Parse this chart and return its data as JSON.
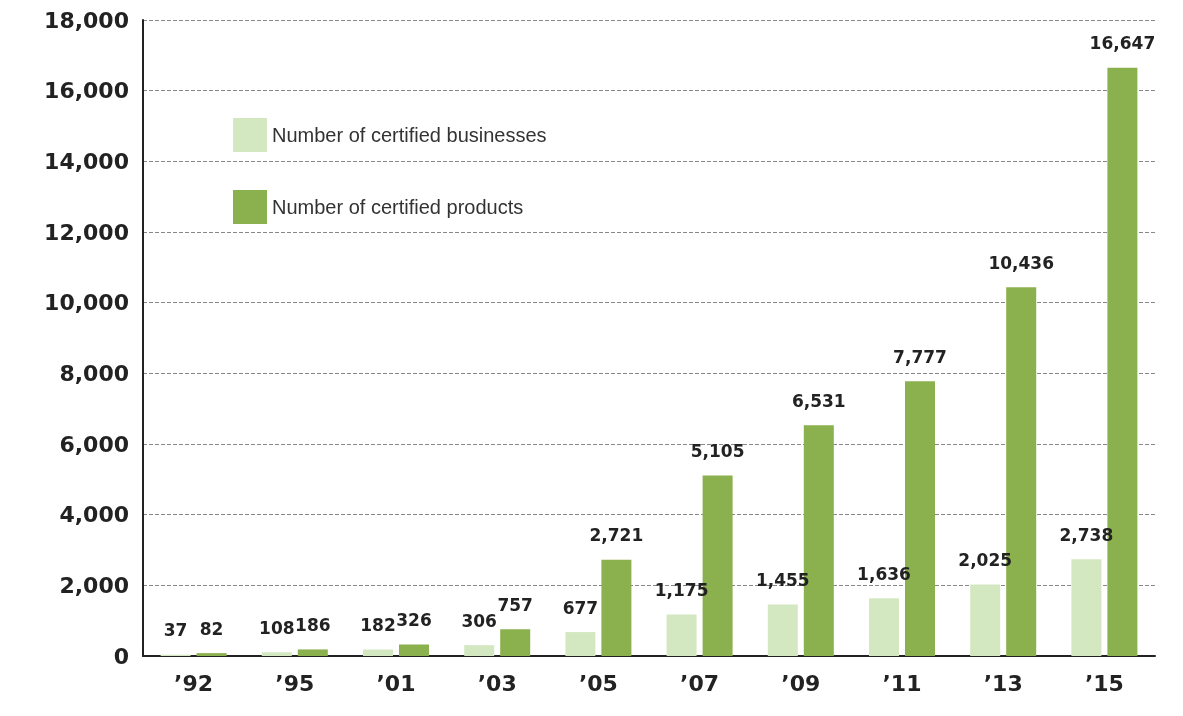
{
  "chart_data": {
    "type": "bar",
    "categories": [
      "’92",
      "’95",
      "’01",
      "’03",
      "’05",
      "’07",
      "’09",
      "’11",
      "’13",
      "’15"
    ],
    "series": [
      {
        "name": "Number of certified businesses",
        "color": "#d3e8c1",
        "values": [
          37,
          108,
          182,
          306,
          677,
          1175,
          1455,
          1636,
          2025,
          2738
        ],
        "value_labels": [
          "37",
          "108",
          "182",
          "306",
          "677",
          "1,175",
          "1,455",
          "1,636",
          "2,025",
          "2,738"
        ]
      },
      {
        "name": "Number of certified products",
        "color": "#8bb04e",
        "values": [
          82,
          186,
          326,
          757,
          2721,
          5105,
          6531,
          7777,
          10436,
          16647
        ],
        "value_labels": [
          "82",
          "186",
          "326",
          "757",
          "2,721",
          "5,105",
          "6,531",
          "7,777",
          "10,436",
          "16,647"
        ]
      }
    ],
    "ylim": [
      0,
      18000
    ],
    "yticks": [
      0,
      {
        "value": 2000,
        "label": "2,000"
      },
      {
        "value": 4000,
        "label": "4,000"
      },
      {
        "value": 6000,
        "label": "6,000"
      },
      {
        "value": 8000,
        "label": "8,000"
      },
      {
        "value": 10000,
        "label": "10,000"
      },
      {
        "value": 12000,
        "label": "12,000"
      },
      {
        "value": 14000,
        "label": "14,000"
      },
      {
        "value": 16000,
        "label": "16,000"
      },
      {
        "value": 18000,
        "label": "18,000"
      }
    ],
    "grid": "y",
    "legend": "top left"
  }
}
